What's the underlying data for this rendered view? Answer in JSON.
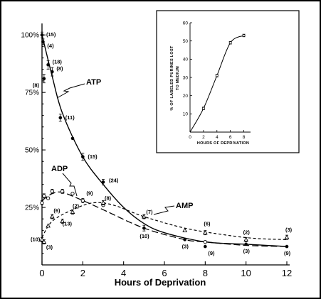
{
  "chart_data": [
    {
      "type": "line",
      "xlabel": "Hours of Deprivation",
      "ylabel": "",
      "xlim": [
        0,
        12
      ],
      "ylim": [
        0,
        105
      ],
      "x_ticks": [
        "0",
        "2",
        "4",
        "6",
        "8",
        "10",
        "12"
      ],
      "y_ticks": [
        {
          "value": 100,
          "label": "100%"
        },
        {
          "value": 75,
          "label": "75%"
        },
        {
          "value": 50,
          "label": "50%"
        },
        {
          "value": 25,
          "label": "25%"
        }
      ],
      "series": [
        {
          "name": "ATP",
          "marker": "filled-circle",
          "line": "solid",
          "points": [
            {
              "x": 0.0,
              "y": 100,
              "n": "(15)"
            },
            {
              "x": 0.05,
              "y": 97,
              "n": "(4)"
            },
            {
              "x": 0.1,
              "y": 81,
              "n": "(8)"
            },
            {
              "x": 0.3,
              "y": 87,
              "n": "(18)"
            },
            {
              "x": 0.5,
              "y": 84,
              "n": "(8)"
            },
            {
              "x": 0.9,
              "y": 64,
              "n": "(11)"
            },
            {
              "x": 1.5,
              "y": 55,
              "n": ""
            },
            {
              "x": 2.0,
              "y": 47,
              "n": "(15)"
            },
            {
              "x": 3.0,
              "y": 36,
              "n": "(24)"
            },
            {
              "x": 5.0,
              "y": 16,
              "n": "(10)"
            },
            {
              "x": 7.0,
              "y": 11,
              "n": "(3)"
            },
            {
              "x": 8.0,
              "y": 8,
              "n": "(9)"
            },
            {
              "x": 10.0,
              "y": 9,
              "n": "(3)"
            },
            {
              "x": 12.0,
              "y": 8,
              "n": "(9)"
            }
          ]
        },
        {
          "name": "ADP",
          "marker": "open-circle",
          "line": "long-dash",
          "points": [
            {
              "x": 0.0,
              "y": 27,
              "n": ""
            },
            {
              "x": 0.1,
              "y": 30,
              "n": ""
            },
            {
              "x": 0.3,
              "y": 29,
              "n": ""
            },
            {
              "x": 0.5,
              "y": 32,
              "n": ""
            },
            {
              "x": 1.0,
              "y": 32,
              "n": ""
            },
            {
              "x": 1.5,
              "y": 31,
              "n": ""
            },
            {
              "x": 2.0,
              "y": 28,
              "n": "(9)"
            },
            {
              "x": 3.0,
              "y": 26,
              "n": ""
            },
            {
              "x": 8.0,
              "y": 10,
              "n": ""
            }
          ]
        },
        {
          "name": "AMP",
          "marker": "open-triangle",
          "line": "short-dash",
          "points": [
            {
              "x": 0.0,
              "y": 11,
              "n": "(10)"
            },
            {
              "x": 0.1,
              "y": 10,
              "n": "(3)"
            },
            {
              "x": 0.3,
              "y": 17,
              "n": ""
            },
            {
              "x": 0.5,
              "y": 21,
              "n": "(6)"
            },
            {
              "x": 1.0,
              "y": 19,
              "n": "(13)"
            },
            {
              "x": 1.5,
              "y": 23,
              "n": "(2)"
            },
            {
              "x": 3.0,
              "y": 27,
              "n": "(8)"
            },
            {
              "x": 5.0,
              "y": 21,
              "n": "(7)"
            },
            {
              "x": 7.0,
              "y": 15,
              "n": ""
            },
            {
              "x": 8.0,
              "y": 14,
              "n": "(6)"
            },
            {
              "x": 10.0,
              "y": 11,
              "n": "(2)"
            },
            {
              "x": 12.0,
              "y": 12,
              "n": "(3)"
            }
          ]
        }
      ]
    },
    {
      "type": "line",
      "xlabel": "HOURS OF DEPRIVATION",
      "ylabel": "% OF LABELED PURINES LOST TO MEDIUM",
      "xlim": [
        0,
        9
      ],
      "ylim": [
        0,
        60
      ],
      "x_ticks": [
        "0",
        "2",
        "4",
        "6",
        "8"
      ],
      "y_ticks": [
        "10",
        "20",
        "30",
        "40",
        "50",
        "60"
      ],
      "series": [
        {
          "name": "",
          "marker": "open-circle",
          "line": "solid",
          "points": [
            {
              "x": 0,
              "y": 0
            },
            {
              "x": 2,
              "y": 13
            },
            {
              "x": 4,
              "y": 31
            },
            {
              "x": 6,
              "y": 49
            },
            {
              "x": 8,
              "y": 53
            }
          ]
        }
      ]
    }
  ]
}
